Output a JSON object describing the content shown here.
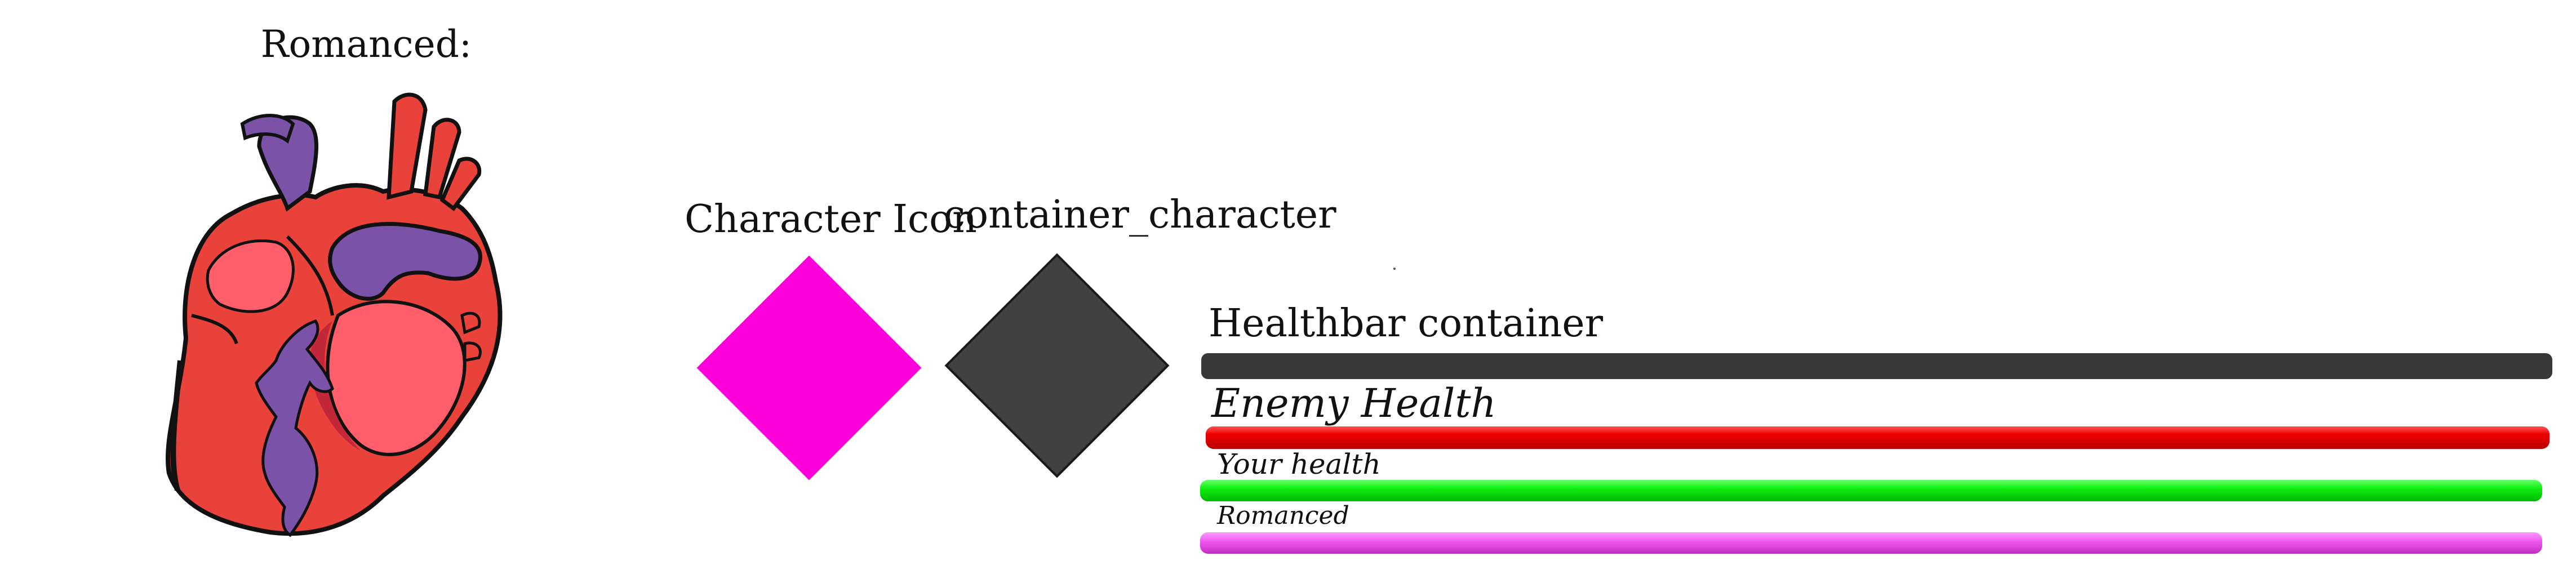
{
  "romanced_panel": {
    "title": "Romanced:",
    "icon": "anatomical-heart-icon"
  },
  "character": {
    "icon_label": "Character Icon",
    "container_label": "container_character",
    "icon_color": "#ff00dd",
    "container_color": "#404040"
  },
  "healthbars": {
    "container_label": "Healthbar container",
    "container_color": "#383838",
    "enemy": {
      "label": "Enemy Health",
      "color": "#ee0000",
      "fill": 1.0
    },
    "you": {
      "label": "Your health",
      "color": "#11ee11",
      "fill": 1.0
    },
    "romance": {
      "label": "Romanced",
      "color": "#ee55ee",
      "fill": 1.0
    }
  }
}
